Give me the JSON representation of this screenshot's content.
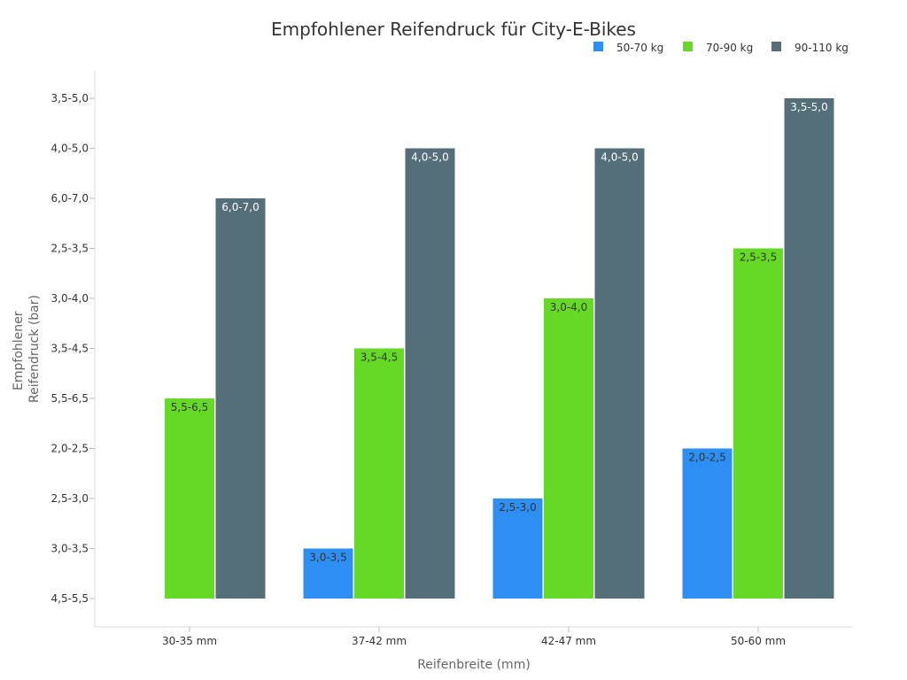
{
  "chart_data": {
    "type": "bar",
    "title": "Empfohlener Reifendruck für City-E-Bikes",
    "xlabel": "Reifenbreite (mm)",
    "ylabel_lines": [
      "Empfohlener",
      "Reifendruck (bar)"
    ],
    "categories": [
      "30-35 mm",
      "37-42 mm",
      "42-47 mm",
      "50-60 mm"
    ],
    "y_tick_labels": [
      "4,5-5,5",
      "3,0-3,5",
      "2,5-3,0",
      "2,0-2,5",
      "5,5-6,5",
      "3,5-4,5",
      "3,0-4,0",
      "2,5-3,5",
      "6,0-7,0",
      "4,0-5,0",
      "3,5-5,0"
    ],
    "series": [
      {
        "name": "50-70 kg",
        "color": "#2d8ff4",
        "labels": [
          null,
          "3,0-3,5",
          "2,5-3,0",
          "2,0-2,5"
        ],
        "level": [
          null,
          1,
          2,
          3
        ]
      },
      {
        "name": "70-90 kg",
        "color": "#66d927",
        "labels": [
          "5,5-6,5",
          "3,5-4,5",
          "3,0-4,0",
          "2,5-3,5"
        ],
        "level": [
          4,
          5,
          6,
          7
        ]
      },
      {
        "name": "90-110 kg",
        "color": "#546e7a",
        "labels": [
          "6,0-7,0",
          "4,0-5,0",
          "4,0-5,0",
          "3,5-5,0"
        ],
        "level": [
          8,
          9,
          9,
          10
        ]
      }
    ],
    "legend_position": "top-right",
    "grid": false
  }
}
